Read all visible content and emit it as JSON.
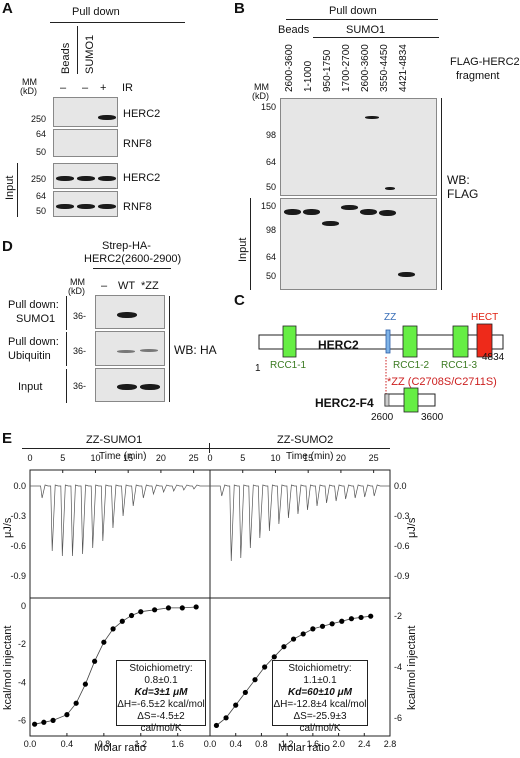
{
  "panelA": {
    "label": "A",
    "pulldown": "Pull down",
    "lanes": [
      "Beads",
      "SUMO1"
    ],
    "mm": "MM",
    "kd": "(kD)",
    "signs": [
      "–",
      "–",
      "+"
    ],
    "ir": "IR",
    "markers": [
      "250",
      "64",
      "50",
      "250",
      "64",
      "50"
    ],
    "blots": [
      "HERC2",
      "RNF8",
      "HERC2",
      "RNF8"
    ],
    "input": "Input"
  },
  "panelB": {
    "label": "B",
    "pulldown": "Pull down",
    "beads": "Beads",
    "sumo1": "SUMO1",
    "fragments": [
      "2600-3600",
      "1-1000",
      "950-1750",
      "1700-2700",
      "2600-3600",
      "3550-4450",
      "4421-4834"
    ],
    "flag_title": "FLAG-HERC2",
    "flag_sub": "fragment",
    "mm": "MM",
    "kd": "(kD)",
    "markers_top": [
      "150",
      "98",
      "64",
      "50"
    ],
    "markers_bottom": [
      "150",
      "98",
      "64",
      "50"
    ],
    "wb1": "WB:",
    "wb2": "FLAG",
    "input": "Input"
  },
  "panelC": {
    "label": "C",
    "zz": "ZZ",
    "hect": "HECT",
    "herc2": "HERC2",
    "rcc": [
      "RCC1-1",
      "RCC1-2",
      "RCC1-3"
    ],
    "one": "1",
    "end": "4834",
    "mutation": "*ZZ (C2708S/C2711S)",
    "f4": "HERC2-F4",
    "f4_start": "2600",
    "f4_end": "3600"
  },
  "panelD": {
    "label": "D",
    "title1": "Strep-HA-",
    "title2": "HERC2(2600-2900)",
    "lanes": [
      "–",
      "WT",
      "*ZZ"
    ],
    "mm": "MM",
    "kd": "(kD)",
    "rows": [
      "Pull down:",
      "SUMO1",
      "Pull down:",
      "Ubiquitin",
      "Input"
    ],
    "marker": "36-",
    "wb": "WB: HA"
  },
  "panelE": {
    "label": "E",
    "titles": [
      "ZZ-SUMO1",
      "ZZ-SUMO2"
    ],
    "time_label": "Time (min)",
    "time_ticks": [
      "0",
      "5",
      "10",
      "15",
      "20",
      "25"
    ],
    "top_yticks": [
      "0.0",
      "-0.3",
      "-0.6",
      "-0.9"
    ],
    "top_ylabel": "μJ/s",
    "bottom_ylabel": "kcal/mol injectant",
    "left_bottom_yticks": [
      "0",
      "-2",
      "-4",
      "-6"
    ],
    "right_bottom_yticks": [
      "-2",
      "-4",
      "-6"
    ],
    "x_label": "Molar ratio",
    "left_xticks": [
      "0.0",
      "0.4",
      "0.8",
      "1.2",
      "1.6"
    ],
    "right_xticks": [
      "0.0",
      "0.4",
      "0.8",
      "1.2",
      "1.6",
      "2.0",
      "2.4",
      "2.8"
    ],
    "box1": [
      "Stoichiometry:",
      "0.8±0.1",
      "Kd=3±1 μM",
      "ΔH=-6.5±2 kcal/mol",
      "ΔS=-4.5±2 cal/mol/K"
    ],
    "box2": [
      "Stoichiometry:",
      "1.1±0.1",
      "Kd=60±10 μM",
      "ΔH=-12.8±4 kcal/mol",
      "ΔS=-25.9±3 cal/mol/K"
    ],
    "sumo1_points": [
      [
        0.05,
        -6.2
      ],
      [
        0.15,
        -6.1
      ],
      [
        0.25,
        -6.0
      ],
      [
        0.4,
        -5.7
      ],
      [
        0.5,
        -5.1
      ],
      [
        0.6,
        -4.1
      ],
      [
        0.7,
        -2.9
      ],
      [
        0.8,
        -1.9
      ],
      [
        0.9,
        -1.2
      ],
      [
        1.0,
        -0.8
      ],
      [
        1.1,
        -0.5
      ],
      [
        1.2,
        -0.3
      ],
      [
        1.35,
        -0.2
      ],
      [
        1.5,
        -0.1
      ],
      [
        1.65,
        -0.1
      ],
      [
        1.8,
        -0.05
      ]
    ],
    "sumo2_points": [
      [
        0.1,
        -6.3
      ],
      [
        0.25,
        -6.0
      ],
      [
        0.4,
        -5.5
      ],
      [
        0.55,
        -5.0
      ],
      [
        0.7,
        -4.5
      ],
      [
        0.85,
        -4.0
      ],
      [
        1.0,
        -3.6
      ],
      [
        1.15,
        -3.2
      ],
      [
        1.3,
        -2.9
      ],
      [
        1.45,
        -2.7
      ],
      [
        1.6,
        -2.5
      ],
      [
        1.75,
        -2.4
      ],
      [
        1.9,
        -2.3
      ],
      [
        2.05,
        -2.2
      ],
      [
        2.2,
        -2.1
      ],
      [
        2.35,
        -2.05
      ],
      [
        2.5,
        -2.0
      ]
    ]
  }
}
